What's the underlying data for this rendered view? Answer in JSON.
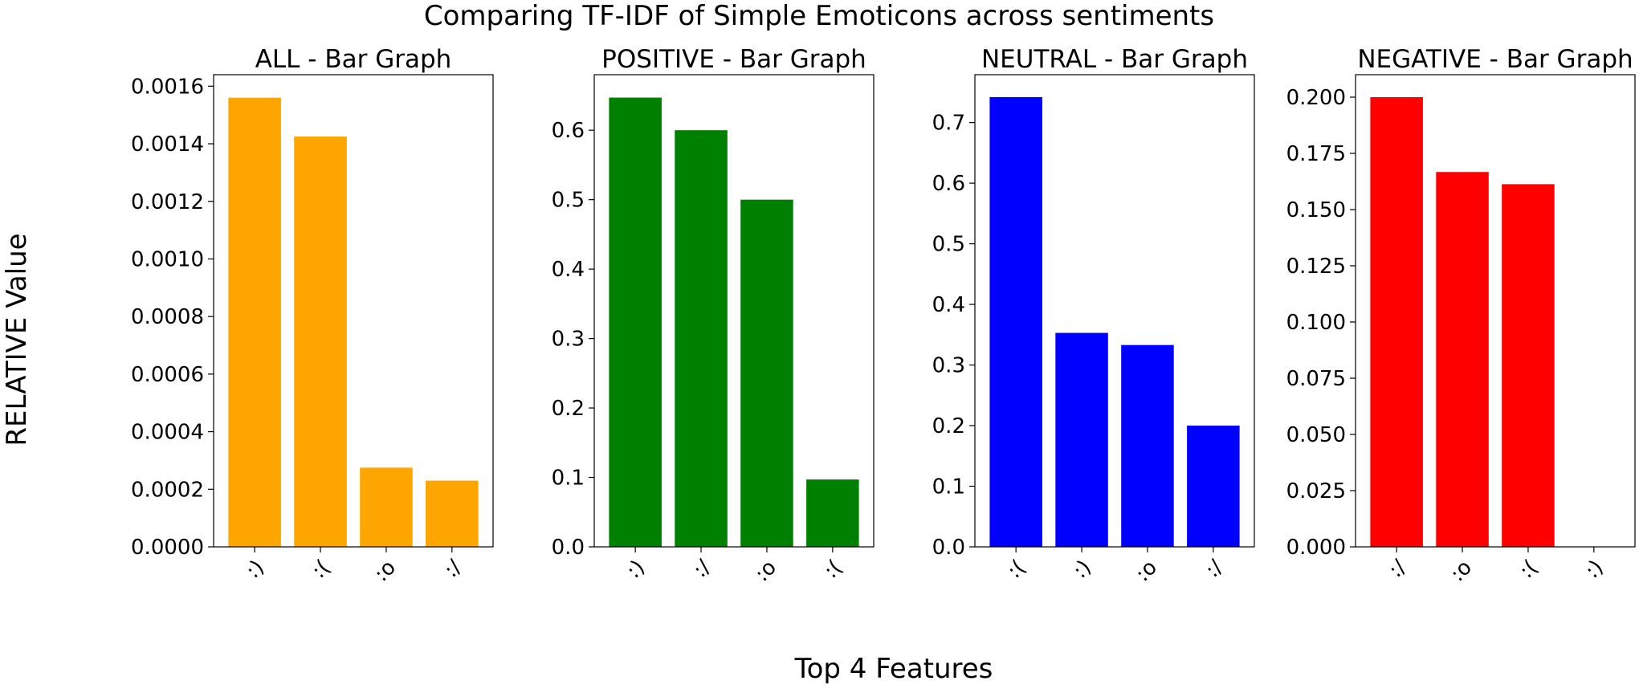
{
  "figure": {
    "suptitle": "Comparing TF-IDF of Simple Emoticons across sentiments",
    "supxlabel": "Top 4 Features",
    "supylabel": "RELATIVE Value"
  },
  "chart_data": [
    {
      "type": "bar",
      "title": "ALL - Bar Graph",
      "color": "#FFA500",
      "categories": [
        ":)",
        ":(",
        ":o",
        ":/"
      ],
      "values": [
        0.00156,
        0.001425,
        0.000275,
        0.00023
      ],
      "ylim": [
        0,
        0.00164
      ],
      "yticks": [
        "0.0000",
        "0.0002",
        "0.0004",
        "0.0006",
        "0.0008",
        "0.0010",
        "0.0012",
        "0.0014",
        "0.0016"
      ],
      "grid": false
    },
    {
      "type": "bar",
      "title": "POSITIVE - Bar Graph",
      "color": "#008000",
      "categories": [
        ":)",
        ":/",
        ":o",
        ":("
      ],
      "values": [
        0.647,
        0.6,
        0.5,
        0.097
      ],
      "ylim": [
        0,
        0.68
      ],
      "yticks": [
        "0.0",
        "0.1",
        "0.2",
        "0.3",
        "0.4",
        "0.5",
        "0.6"
      ],
      "grid": false
    },
    {
      "type": "bar",
      "title": "NEUTRAL - Bar Graph",
      "color": "#0000FF",
      "categories": [
        ":(",
        ":)",
        ":o",
        ":/"
      ],
      "values": [
        0.742,
        0.353,
        0.333,
        0.2
      ],
      "ylim": [
        0,
        0.779
      ],
      "yticks": [
        "0.0",
        "0.1",
        "0.2",
        "0.3",
        "0.4",
        "0.5",
        "0.6",
        "0.7"
      ],
      "grid": false
    },
    {
      "type": "bar",
      "title": "NEGATIVE - Bar Graph",
      "color": "#FF0000",
      "categories": [
        ":/",
        ":o",
        ":(",
        ":)"
      ],
      "values": [
        0.2,
        0.1667,
        0.1613,
        0.0
      ],
      "ylim": [
        0,
        0.21
      ],
      "yticks": [
        "0.000",
        "0.025",
        "0.050",
        "0.075",
        "0.100",
        "0.125",
        "0.150",
        "0.175",
        "0.200"
      ],
      "grid": false
    }
  ]
}
